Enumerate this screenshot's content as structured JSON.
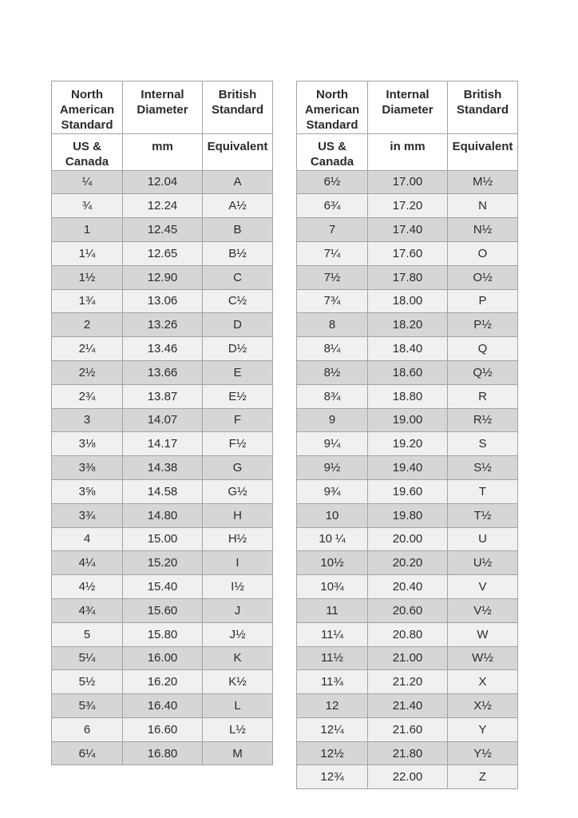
{
  "colors": {
    "row_dark": "#d6d6d6",
    "row_light": "#f0f0f0",
    "border": "#a3a3a3",
    "header_bg": "#ffffff",
    "text": "#2b2b2b"
  },
  "tables": [
    {
      "title": "ring-size-conversion-small-sizes",
      "headers": [
        "North American Standard",
        "Internal Diameter",
        "British Standard"
      ],
      "subheaders": [
        "US & Canada",
        "mm",
        "Equivalent"
      ],
      "rows": [
        [
          "¼",
          "12.04",
          "A"
        ],
        [
          "¾",
          "12.24",
          "A½"
        ],
        [
          "1",
          "12.45",
          "B"
        ],
        [
          "1¼",
          "12.65",
          "B½"
        ],
        [
          "1½",
          "12.90",
          "C"
        ],
        [
          "1¾",
          "13.06",
          "C½"
        ],
        [
          "2",
          "13.26",
          "D"
        ],
        [
          "2¼",
          "13.46",
          "D½"
        ],
        [
          "2½",
          "13.66",
          "E"
        ],
        [
          "2¾",
          "13.87",
          "E½"
        ],
        [
          "3",
          "14.07",
          "F"
        ],
        [
          "3⅛",
          "14.17",
          "F½"
        ],
        [
          "3⅜",
          "14.38",
          "G"
        ],
        [
          "3⅝",
          "14.58",
          "G½"
        ],
        [
          "3¾",
          "14.80",
          "H"
        ],
        [
          "4",
          "15.00",
          "H½"
        ],
        [
          "4¼",
          "15.20",
          "I"
        ],
        [
          "4½",
          "15.40",
          "I½"
        ],
        [
          "4¾",
          "15.60",
          "J"
        ],
        [
          "5",
          "15.80",
          "J½"
        ],
        [
          "5¼",
          "16.00",
          "K"
        ],
        [
          "5½",
          "16.20",
          "K½"
        ],
        [
          "5¾",
          "16.40",
          "L"
        ],
        [
          "6",
          "16.60",
          "L½"
        ],
        [
          "6¼",
          "16.80",
          "M"
        ]
      ]
    },
    {
      "title": "ring-size-conversion-large-sizes",
      "headers": [
        "North American Standard",
        "Internal Diameter",
        "British Standard"
      ],
      "subheaders": [
        "US & Canada",
        "in mm",
        "Equivalent"
      ],
      "rows": [
        [
          "6½",
          "17.00",
          "M½"
        ],
        [
          "6¾",
          "17.20",
          "N"
        ],
        [
          "7",
          "17.40",
          "N½"
        ],
        [
          "7¼",
          "17.60",
          "O"
        ],
        [
          "7½",
          "17.80",
          "O½"
        ],
        [
          "7¾",
          "18.00",
          "P"
        ],
        [
          "8",
          "18.20",
          "P½"
        ],
        [
          "8¼",
          "18.40",
          "Q"
        ],
        [
          "8½",
          "18.60",
          "Q½"
        ],
        [
          "8¾",
          "18.80",
          "R"
        ],
        [
          "9",
          "19.00",
          "R½"
        ],
        [
          "9¼",
          "19.20",
          "S"
        ],
        [
          "9½",
          "19.40",
          "S½"
        ],
        [
          "9¾",
          "19.60",
          "T"
        ],
        [
          "10",
          "19.80",
          "T½"
        ],
        [
          "10 ¼",
          "20.00",
          "U"
        ],
        [
          "10½",
          "20.20",
          "U½"
        ],
        [
          "10¾",
          "20.40",
          "V"
        ],
        [
          "11",
          "20.60",
          "V½"
        ],
        [
          "11¼",
          "20.80",
          "W"
        ],
        [
          "11½",
          "21.00",
          "W½"
        ],
        [
          "11¾",
          "21.20",
          "X"
        ],
        [
          "12",
          "21.40",
          "X½"
        ],
        [
          "12¼",
          "21.60",
          "Y"
        ],
        [
          "12½",
          "21.80",
          "Y½"
        ],
        [
          "12¾",
          "22.00",
          "Z"
        ]
      ]
    }
  ]
}
